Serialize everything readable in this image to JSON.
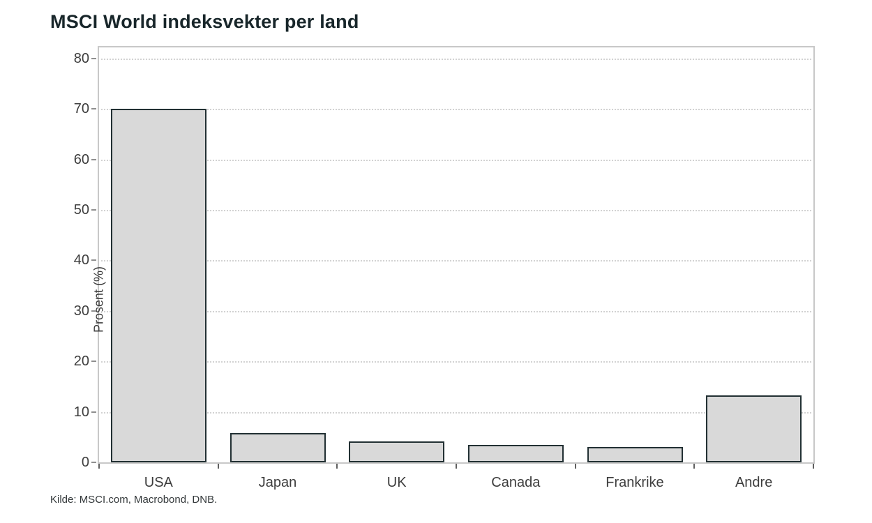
{
  "title": "MSCI World indeksvekter per land",
  "source": "Kilde: MSCI.com, Macrobond, DNB.",
  "chart_data": {
    "type": "bar",
    "title": "MSCI World indeksvekter per land",
    "categories": [
      "USA",
      "Japan",
      "UK",
      "Canada",
      "Frankrike",
      "Andre"
    ],
    "values": [
      70.1,
      5.8,
      4.1,
      3.4,
      3.1,
      13.3
    ],
    "xlabel": "",
    "ylabel": "Prosent (%)",
    "ylim": [
      0,
      82.2
    ],
    "yticks": [
      0,
      10,
      20,
      30,
      40,
      50,
      60,
      70,
      80
    ],
    "grid": "horizontal-dotted",
    "legend": "none",
    "bar_fill_color": "#d9d9d9",
    "bar_border_color": "#223033",
    "plot_border_color": "#c8c8c8",
    "grid_color": "#d2d2d2",
    "tick_label_color": "#3d3d3d",
    "title_color": "#18262a"
  }
}
